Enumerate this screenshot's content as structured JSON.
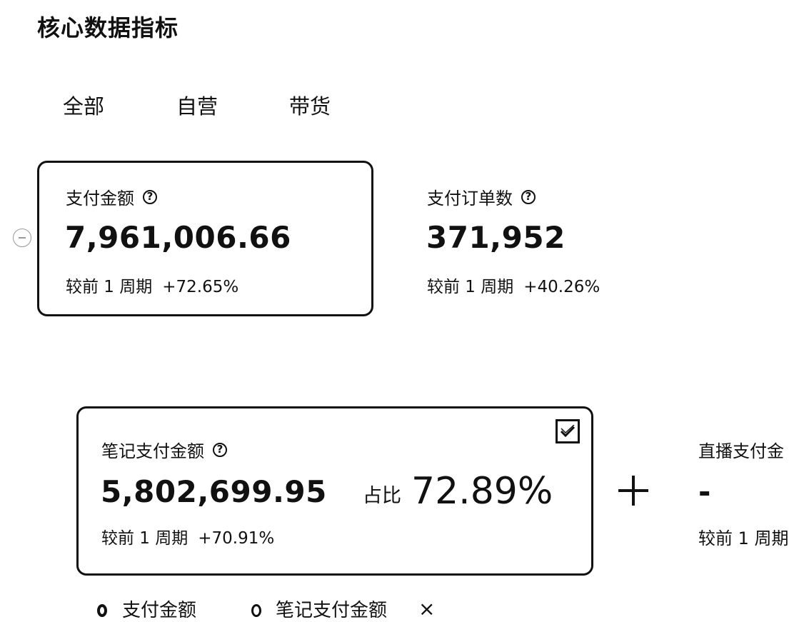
{
  "page": {
    "title": "核心数据指标"
  },
  "tabs": [
    {
      "label": "全部"
    },
    {
      "label": "自营"
    },
    {
      "label": "带货"
    }
  ],
  "metrics": {
    "pay_amount": {
      "label": "支付金额",
      "value": "7,961,006.66",
      "compare_label": "较前 1 周期",
      "compare_value": "+72.65%"
    },
    "pay_orders": {
      "label": "支付订单数",
      "value": "371,952",
      "compare_label": "较前 1 周期",
      "compare_value": "+40.26%"
    },
    "note_pay_amount": {
      "label": "笔记支付金额",
      "value": "5,802,699.95",
      "compare_label": "较前 1 周期",
      "compare_value": "+70.91%",
      "share_label": "占比",
      "share_value": "72.89%"
    },
    "live_pay_amount": {
      "label": "直播支付金",
      "value": "-",
      "compare_label": "较前 1 周期"
    }
  },
  "legend": {
    "items": [
      {
        "label": "支付金额"
      },
      {
        "label": "笔记支付金额"
      }
    ],
    "close_symbol": "×"
  },
  "icons": {
    "help": "?",
    "plus": "plus-icon",
    "checkbox": "checkbox-checked-icon"
  }
}
